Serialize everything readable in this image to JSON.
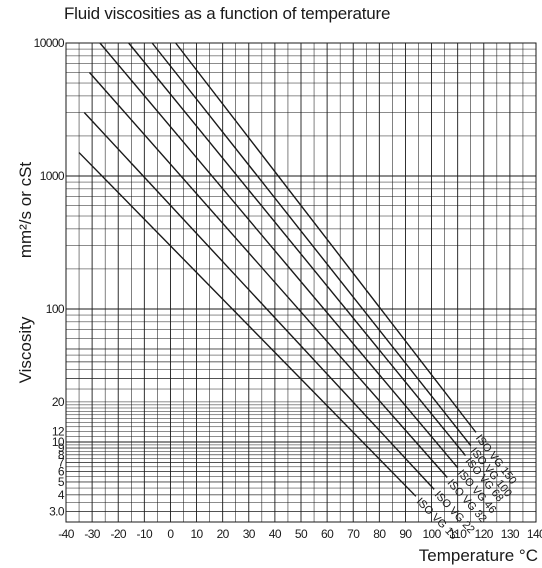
{
  "title": "Fluid viscosities as a function of temperature",
  "ylabel_unit": "mm²/s or cSt",
  "ylabel": "Viscosity",
  "xlabel": "Temperature °C",
  "colors": {
    "grid": "#1a1a1a",
    "line": "#1a1a1a",
    "text": "#1a1a1a",
    "background": "#ffffff"
  },
  "chart_data": {
    "type": "line",
    "title": "Fluid viscosities as a function of temperature",
    "xlabel": "Temperature °C",
    "ylabel": "Viscosity mm²/s or cSt",
    "x_scale": "linear",
    "y_scale": "log",
    "xlim": [
      -40,
      140
    ],
    "ylim": [
      2.5,
      10000
    ],
    "grid": true,
    "x_ticks": [
      "-40",
      "-30",
      "-20",
      "-10",
      "0",
      "10",
      "20",
      "30",
      "40",
      "50",
      "60",
      "70",
      "80",
      "90",
      "100",
      "110",
      "120",
      "130",
      "140"
    ],
    "y_ticks": [
      "10000",
      "1000",
      "100",
      "20",
      "12",
      "10",
      "9",
      "8",
      "7",
      "6",
      "5",
      "4",
      "3.0"
    ],
    "series": [
      {
        "name": "ISO VG 15",
        "x": [
          -35,
          94
        ],
        "y": [
          1500,
          3.9
        ]
      },
      {
        "name": "ISO VG 22",
        "x": [
          -33,
          101
        ],
        "y": [
          3000,
          4.4
        ]
      },
      {
        "name": "ISO VG 32",
        "x": [
          -31,
          106
        ],
        "y": [
          6000,
          5.4
        ]
      },
      {
        "name": "ISO VG 46",
        "x": [
          -27,
          110
        ],
        "y": [
          10000,
          6.4
        ]
      },
      {
        "name": "ISO VG 68",
        "x": [
          -16,
          113
        ],
        "y": [
          10000,
          7.9
        ]
      },
      {
        "name": "ISO VG 100",
        "x": [
          -7,
          115
        ],
        "y": [
          10000,
          9.4
        ]
      },
      {
        "name": "ISO VG 150",
        "x": [
          2,
          117
        ],
        "y": [
          10000,
          11.8
        ]
      }
    ]
  }
}
